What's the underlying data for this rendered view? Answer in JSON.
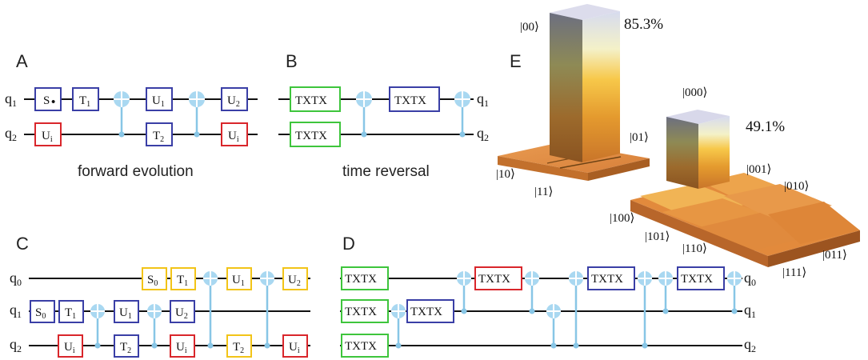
{
  "colors": {
    "blue": "#3a3fa6",
    "red": "#d9262b",
    "green": "#3ec53c",
    "yellow": "#f2c418",
    "cnot": "#88c6e6",
    "bar_top": "#ccccdd",
    "floor": "#e28a3c"
  },
  "panels": {
    "A": {
      "label": "A",
      "caption": "forward evolution",
      "qubits": [
        {
          "name": "q",
          "sub": "1"
        },
        {
          "name": "q",
          "sub": "2"
        }
      ],
      "gates": [
        {
          "text": "S",
          "sub": "",
          "glyph": "•",
          "color": "blue",
          "wire": 0
        },
        {
          "text": "T",
          "sub": "1",
          "color": "blue",
          "wire": 0
        },
        {
          "text": "U",
          "sub": "1",
          "color": "blue",
          "wire": 0
        },
        {
          "text": "U",
          "sub": "2",
          "color": "blue",
          "wire": 0
        },
        {
          "text": "U",
          "sub": "i",
          "color": "red",
          "wire": 1
        },
        {
          "text": "T",
          "sub": "2",
          "color": "blue",
          "wire": 1
        },
        {
          "text": "U",
          "sub": "i",
          "color": "red",
          "wire": 1
        }
      ]
    },
    "B": {
      "label": "B",
      "caption": "time reversal",
      "qubits": [
        {
          "name": "q",
          "sub": "1"
        },
        {
          "name": "q",
          "sub": "2"
        }
      ],
      "gates": [
        {
          "text": "TXTX",
          "sub": "",
          "color": "green",
          "wire": 0
        },
        {
          "text": "TXTX",
          "sub": "",
          "color": "blue",
          "wire": 0
        },
        {
          "text": "TXTX",
          "sub": "",
          "color": "green",
          "wire": 1
        }
      ]
    },
    "C": {
      "label": "C",
      "qubits": [
        {
          "name": "q",
          "sub": "0"
        },
        {
          "name": "q",
          "sub": "1"
        },
        {
          "name": "q",
          "sub": "2"
        }
      ],
      "gates": [
        {
          "text": "S",
          "sub": "0",
          "color": "yellow",
          "wire": 0
        },
        {
          "text": "T",
          "sub": "1",
          "color": "yellow",
          "wire": 0
        },
        {
          "text": "U",
          "sub": "1",
          "color": "yellow",
          "wire": 0
        },
        {
          "text": "U",
          "sub": "2",
          "color": "yellow",
          "wire": 0
        },
        {
          "text": "S",
          "sub": "0",
          "color": "blue",
          "wire": 1
        },
        {
          "text": "T",
          "sub": "1",
          "color": "blue",
          "wire": 1
        },
        {
          "text": "U",
          "sub": "1",
          "color": "blue",
          "wire": 1
        },
        {
          "text": "U",
          "sub": "2",
          "color": "blue",
          "wire": 1
        },
        {
          "text": "U",
          "sub": "i",
          "color": "red",
          "wire": 2
        },
        {
          "text": "T",
          "sub": "2",
          "color": "blue",
          "wire": 2
        },
        {
          "text": "U",
          "sub": "i",
          "color": "red",
          "wire": 2
        },
        {
          "text": "T",
          "sub": "2",
          "color": "yellow",
          "wire": 2
        },
        {
          "text": "U",
          "sub": "i",
          "color": "red",
          "wire": 2
        }
      ]
    },
    "D": {
      "label": "D",
      "qubits": [
        {
          "name": "q",
          "sub": "0"
        },
        {
          "name": "q",
          "sub": "1"
        },
        {
          "name": "q",
          "sub": "2"
        }
      ],
      "gates": [
        {
          "text": "TXTX",
          "sub": "",
          "color": "green",
          "wire": 0
        },
        {
          "text": "TXTX",
          "sub": "",
          "color": "red",
          "wire": 0
        },
        {
          "text": "TXTX",
          "sub": "",
          "color": "blue",
          "wire": 0
        },
        {
          "text": "TXTX",
          "sub": "",
          "color": "blue",
          "wire": 0
        },
        {
          "text": "TXTX",
          "sub": "",
          "color": "green",
          "wire": 1
        },
        {
          "text": "TXTX",
          "sub": "",
          "color": "blue",
          "wire": 1
        },
        {
          "text": "TXTX",
          "sub": "",
          "color": "green",
          "wire": 2
        }
      ]
    },
    "E": {
      "label": "E",
      "two_qubit": {
        "tallest_label": "|00⟩",
        "tallest_value": "85.3%",
        "states": [
          "|00⟩",
          "|01⟩",
          "|10⟩",
          "|11⟩"
        ]
      },
      "three_qubit": {
        "tallest_label": "|000⟩",
        "tallest_value": "49.1%",
        "states": [
          "|000⟩",
          "|001⟩",
          "|010⟩",
          "|100⟩",
          "|101⟩",
          "|110⟩",
          "|011⟩",
          "|111⟩"
        ]
      }
    }
  }
}
